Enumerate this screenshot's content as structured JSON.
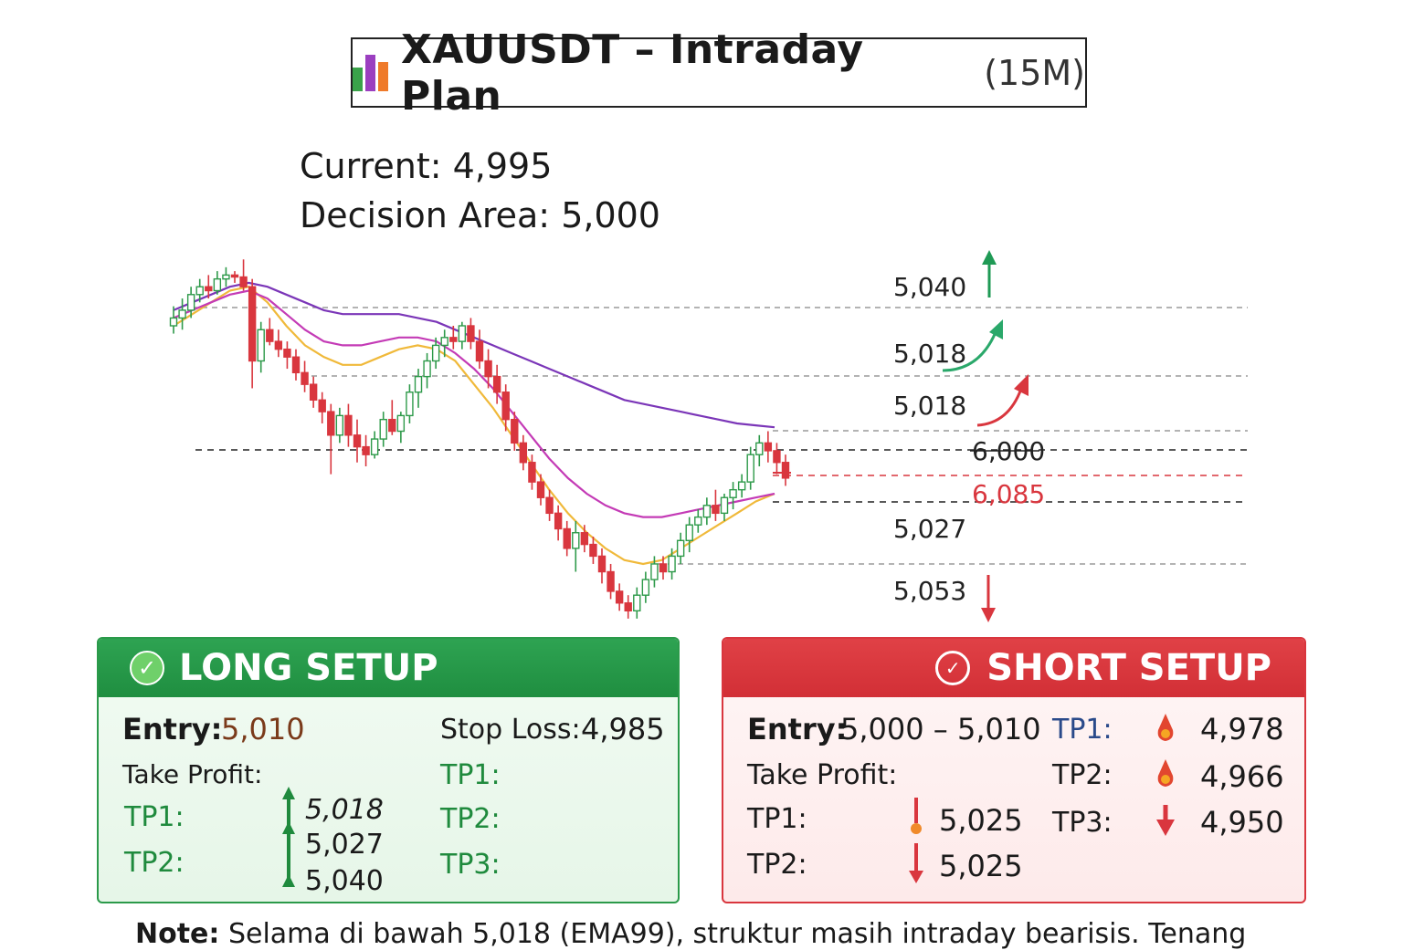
{
  "title": {
    "main": "XAUUSDT – Intraday Plan",
    "sub": "(15M)",
    "icon_name": "bar-chart-icon"
  },
  "info": {
    "current": "Current: 4,995",
    "decision": "Decision Area: 5,000"
  },
  "chart_data": {
    "type": "candlestick",
    "title": "",
    "xlabel": "",
    "ylabel": "",
    "level_labels": [
      {
        "text": "5,040",
        "color": "#222222",
        "arrow": "up-green"
      },
      {
        "text": "5,018",
        "color": "#222222",
        "arrow": "up-curve-green"
      },
      {
        "text": "5,018",
        "color": "#222222",
        "arrow": "up-curve-red"
      },
      {
        "text": "6,000",
        "color": "#222222",
        "strike": true
      },
      {
        "text": "6,085",
        "color": "#d9363e"
      },
      {
        "text": "5,027",
        "color": "#222222"
      },
      {
        "text": "5,053",
        "color": "#222222",
        "arrow": "down-red"
      }
    ],
    "candles": [
      [
        5006,
        5016,
        5002,
        5010
      ],
      [
        5010,
        5020,
        5004,
        5014
      ],
      [
        5014,
        5026,
        5010,
        5022
      ],
      [
        5022,
        5030,
        5018,
        5026
      ],
      [
        5026,
        5032,
        5020,
        5024
      ],
      [
        5024,
        5034,
        5022,
        5030
      ],
      [
        5030,
        5036,
        5026,
        5032
      ],
      [
        5032,
        5034,
        5028,
        5031
      ],
      [
        5031,
        5040,
        5024,
        5026
      ],
      [
        5026,
        5030,
        4974,
        4988
      ],
      [
        4988,
        5008,
        4982,
        5004
      ],
      [
        5004,
        5010,
        4996,
        4998
      ],
      [
        4998,
        5004,
        4990,
        4994
      ],
      [
        4994,
        4998,
        4984,
        4990
      ],
      [
        4990,
        4994,
        4978,
        4982
      ],
      [
        4982,
        4988,
        4972,
        4976
      ],
      [
        4976,
        4980,
        4964,
        4968
      ],
      [
        4968,
        4972,
        4956,
        4962
      ],
      [
        4962,
        4966,
        4930,
        4950
      ],
      [
        4950,
        4964,
        4946,
        4960
      ],
      [
        4960,
        4966,
        4944,
        4950
      ],
      [
        4950,
        4958,
        4936,
        4944
      ],
      [
        4944,
        4950,
        4934,
        4940
      ],
      [
        4940,
        4952,
        4938,
        4948
      ],
      [
        4948,
        4962,
        4944,
        4958
      ],
      [
        4958,
        4968,
        4950,
        4952
      ],
      [
        4952,
        4962,
        4946,
        4960
      ],
      [
        4960,
        4976,
        4956,
        4972
      ],
      [
        4972,
        4984,
        4964,
        4980
      ],
      [
        4980,
        4992,
        4974,
        4988
      ],
      [
        4988,
        5000,
        4984,
        4996
      ],
      [
        4996,
        5004,
        4990,
        5000
      ],
      [
        5000,
        5006,
        4994,
        4998
      ],
      [
        4998,
        5008,
        4994,
        5006
      ],
      [
        5006,
        5010,
        4994,
        4998
      ],
      [
        4998,
        5004,
        4984,
        4988
      ],
      [
        4988,
        4994,
        4974,
        4980
      ],
      [
        4980,
        4986,
        4966,
        4972
      ],
      [
        4972,
        4976,
        4952,
        4958
      ],
      [
        4958,
        4962,
        4942,
        4946
      ],
      [
        4946,
        4950,
        4932,
        4936
      ],
      [
        4936,
        4940,
        4922,
        4926
      ],
      [
        4926,
        4930,
        4914,
        4918
      ],
      [
        4918,
        4922,
        4906,
        4910
      ],
      [
        4910,
        4914,
        4896,
        4902
      ],
      [
        4902,
        4906,
        4888,
        4892
      ],
      [
        4892,
        4906,
        4880,
        4900
      ],
      [
        4900,
        4904,
        4890,
        4894
      ],
      [
        4894,
        4898,
        4884,
        4888
      ],
      [
        4888,
        4892,
        4874,
        4880
      ],
      [
        4880,
        4884,
        4866,
        4870
      ],
      [
        4870,
        4874,
        4860,
        4864
      ],
      [
        4864,
        4868,
        4856,
        4860
      ],
      [
        4860,
        4872,
        4856,
        4868
      ],
      [
        4868,
        4880,
        4864,
        4876
      ],
      [
        4876,
        4888,
        4872,
        4884
      ],
      [
        4884,
        4888,
        4876,
        4880
      ],
      [
        4880,
        4892,
        4876,
        4888
      ],
      [
        4888,
        4900,
        4884,
        4896
      ],
      [
        4896,
        4908,
        4890,
        4904
      ],
      [
        4904,
        4912,
        4900,
        4908
      ],
      [
        4908,
        4918,
        4904,
        4914
      ],
      [
        4914,
        4922,
        4906,
        4910
      ],
      [
        4910,
        4920,
        4906,
        4918
      ],
      [
        4918,
        4926,
        4912,
        4922
      ],
      [
        4922,
        4930,
        4918,
        4926
      ],
      [
        4926,
        4944,
        4922,
        4940
      ],
      [
        4940,
        4950,
        4934,
        4946
      ],
      [
        4946,
        4952,
        4936,
        4942
      ],
      [
        4942,
        4946,
        4930,
        4936
      ],
      [
        4936,
        4940,
        4924,
        4928
      ]
    ],
    "ema_series": [
      {
        "color": "#f0b93a",
        "values": [
          5006,
          5012,
          5018,
          5024,
          5026,
          5018,
          5006,
          4996,
          4990,
          4986,
          4986,
          4990,
          4994,
          4996,
          4994,
          4988,
          4976,
          4964,
          4950,
          4936,
          4922,
          4910,
          4900,
          4892,
          4886,
          4884,
          4886,
          4892,
          4898,
          4904,
          4910,
          4916,
          4920
        ]
      },
      {
        "color": "#c43bb6",
        "values": [
          5010,
          5014,
          5018,
          5022,
          5024,
          5020,
          5012,
          5004,
          4998,
          4996,
          4996,
          4998,
          5000,
          5000,
          4998,
          4992,
          4984,
          4974,
          4962,
          4950,
          4938,
          4928,
          4920,
          4914,
          4910,
          4908,
          4908,
          4910,
          4912,
          4914,
          4916,
          4918,
          4920
        ]
      },
      {
        "color": "#7b36b8",
        "values": [
          5014,
          5018,
          5022,
          5026,
          5028,
          5026,
          5022,
          5018,
          5014,
          5012,
          5012,
          5012,
          5012,
          5010,
          5008,
          5004,
          5000,
          4996,
          4992,
          4988,
          4984,
          4980,
          4976,
          4972,
          4968,
          4966,
          4964,
          4962,
          4960,
          4958,
          4956,
          4955,
          4954
        ]
      }
    ]
  },
  "long": {
    "header": "LONG SETUP",
    "entry_label": "Entry:",
    "entry_value": "5,010",
    "stop_label": "Stop Loss:",
    "stop_value": "4,985",
    "tp_label": "Take Profit:",
    "tp1_label": "TP1:",
    "tp2_label": "TP2:",
    "values": [
      "5,018",
      "5,027",
      "5,040"
    ],
    "right_tp1": "TP1:",
    "right_tp2": "TP2:",
    "right_tp3": "TP3:"
  },
  "short": {
    "header": "SHORT SETUP",
    "entry_label": "Entry:",
    "entry_value": "5,000 – 5,010",
    "tp_label": "Take Profit:",
    "tp1_label": "TP1:",
    "tp1_value": "5,025",
    "tp2_label": "TP2:",
    "tp2_value": "5,025",
    "r_tp1_label": "TP1:",
    "r_tp1_value": "4,978",
    "r_tp2_label": "TP2:",
    "r_tp2_value": "4,966",
    "r_tp3_label": "TP3:",
    "r_tp3_value": "4,950"
  },
  "note": {
    "label": "Note:",
    "text": "Selama di bawah 5,018 (EMA99), struktur masih intraday bearisis. Tenang"
  }
}
